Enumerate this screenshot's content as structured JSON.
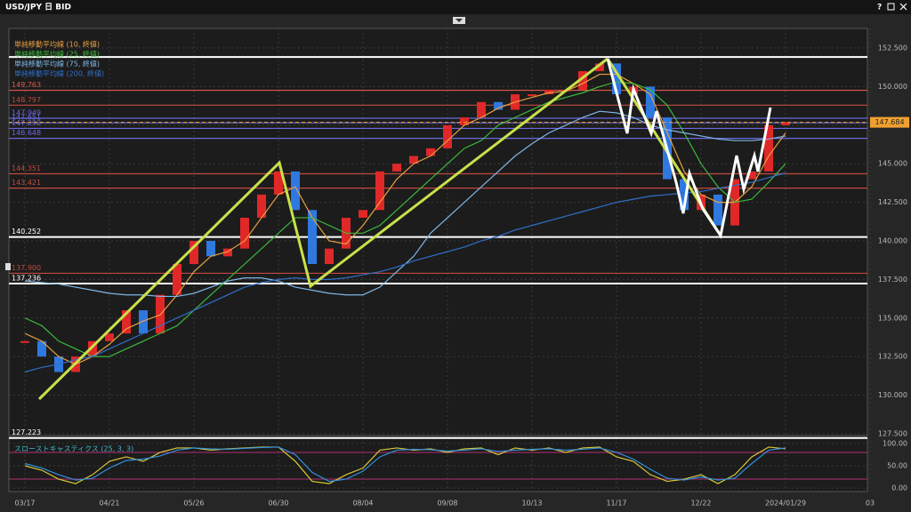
{
  "window": {
    "title": "USD/JPY 日 BID",
    "help": "?"
  },
  "chart_data": [
    {
      "type": "candlestick",
      "categories": [
        "03/17",
        null,
        null,
        null,
        null,
        "04/21",
        null,
        null,
        null,
        null,
        "05/26",
        null,
        null,
        null,
        null,
        "06/30",
        null,
        null,
        null,
        null,
        "08/04",
        null,
        null,
        null,
        null,
        "09/08",
        null,
        null,
        null,
        null,
        "10/13",
        null,
        null,
        null,
        null,
        "11/17",
        null,
        null,
        null,
        null,
        "12/22",
        null,
        null,
        null,
        null,
        "2024/01/29",
        null,
        null,
        null,
        null,
        "03"
      ],
      "values": [
        133.5,
        132.5,
        131.5,
        132.5,
        133.5,
        134,
        135.5,
        134,
        136.5,
        138.5,
        140,
        139,
        139.5,
        141.5,
        143,
        144.5,
        142,
        138.5,
        139.5,
        141.5,
        142,
        144.5,
        145,
        145.5,
        146,
        147.5,
        148,
        149,
        148.5,
        149.5,
        149.5,
        149.8,
        149.8,
        151,
        151.5,
        149.5,
        150,
        148,
        144,
        142,
        143,
        141,
        144,
        144.5,
        147.5,
        147.7,
        null,
        null,
        null,
        null,
        null
      ],
      "up_color": "#e02828",
      "down_color": "#2f78e0",
      "series": [
        {
          "name": "単純移動平均線 (10, 終値)",
          "color": "#e8a040",
          "values": [
            134,
            133.5,
            132.5,
            132,
            132.5,
            133.3,
            134.3,
            134.8,
            135.2,
            136.5,
            138,
            139,
            139.3,
            140,
            141.5,
            143,
            143.5,
            141.5,
            140,
            139.8,
            141,
            142.5,
            144,
            145,
            145.5,
            146.5,
            147.5,
            148,
            148.6,
            149,
            149.3,
            149.6,
            149.7,
            150.2,
            150.8,
            150.8,
            150.2,
            149.5,
            147,
            144.5,
            143,
            142.5,
            142.5,
            143.5,
            145.5,
            147,
            null,
            null,
            null,
            null,
            null
          ]
        },
        {
          "name": "単純移動平均線 (25, 終値)",
          "color": "#3cb83c",
          "values": [
            135,
            134.5,
            133.5,
            133,
            132.5,
            132.5,
            133,
            133.5,
            134,
            134.5,
            135.5,
            136.5,
            137.5,
            138.5,
            139.5,
            140.5,
            141.5,
            141.5,
            141,
            140.5,
            140.5,
            141,
            142,
            143,
            144,
            145,
            146,
            146.5,
            147.5,
            148,
            148.5,
            149,
            149.3,
            149.6,
            150,
            150.3,
            150.2,
            149.8,
            148.8,
            147,
            145,
            143.5,
            142.5,
            142.7,
            143.8,
            145,
            null,
            null,
            null,
            null,
            null
          ]
        },
        {
          "name": "単純移動平均線 (75, 終値)",
          "color": "#7fb6e8",
          "values": [
            137.4,
            137.3,
            137.2,
            137,
            136.8,
            136.6,
            136.5,
            136.5,
            136.4,
            136.4,
            136.6,
            137,
            137.4,
            137.6,
            137.6,
            137.4,
            137,
            136.8,
            136.6,
            136.5,
            136.5,
            137,
            138,
            139,
            140.5,
            141.5,
            142.5,
            143.5,
            144.5,
            145.5,
            146.3,
            147,
            147.5,
            148,
            148.4,
            148.3,
            148,
            147.5,
            147.2,
            147,
            146.8,
            146.6,
            146.5,
            146.5,
            146.6,
            146.8,
            null,
            null,
            null,
            null,
            null
          ]
        },
        {
          "name": "単純移動平均線 (200, 終値)",
          "color": "#2f6fc8",
          "values": [
            131.5,
            131.8,
            132,
            132.3,
            132.5,
            133,
            133.5,
            134,
            134.5,
            135,
            135.5,
            136,
            136.5,
            137,
            137.3,
            137.5,
            137.6,
            137.5,
            137.5,
            137.6,
            137.8,
            138,
            138.3,
            138.7,
            139,
            139.3,
            139.6,
            140,
            140.3,
            140.7,
            141,
            141.3,
            141.6,
            141.9,
            142.2,
            142.5,
            142.7,
            142.9,
            143,
            143.1,
            143.2,
            143.4,
            143.6,
            143.8,
            144.1,
            144.4,
            null,
            null,
            null,
            null,
            null
          ]
        }
      ],
      "levels": [
        {
          "value": 151.92,
          "color": "#ffffff"
        },
        {
          "value": 149.763,
          "color": "#e05a4a"
        },
        {
          "value": 148.797,
          "color": "#c04a3e"
        },
        {
          "value": 147.949,
          "color": "#6a6ae0"
        },
        {
          "value": 147.651,
          "color": "#6a6ae0"
        },
        {
          "value": 147.29,
          "label": "147.290",
          "color": "#6a6ae0"
        },
        {
          "value": 146.648,
          "color": "#6a6ae0"
        },
        {
          "value": 144.351,
          "color": "#c04a3e"
        },
        {
          "value": 143.421,
          "color": "#c04a3e"
        },
        {
          "value": 140.252,
          "color": "#ffffff"
        },
        {
          "value": 137.9,
          "label": "137.900",
          "color": "#c04a3e"
        },
        {
          "value": 137.236,
          "color": "#ffffff"
        },
        {
          "value": 127.223,
          "color": "#ffffff"
        }
      ],
      "last_price": {
        "value": 147.684,
        "label": "147.684",
        "color": "#f0a030"
      },
      "ylim": [
        127.38,
        153.77
      ],
      "yticks": [
        {
          "value": 127.5,
          "label": "127.500"
        },
        {
          "value": 130,
          "label": "130.000"
        },
        {
          "value": 132.5,
          "label": "132.500"
        },
        {
          "value": 135,
          "label": "135.000"
        },
        {
          "value": 137.5,
          "label": "137.500"
        },
        {
          "value": 140,
          "label": "140.000"
        },
        {
          "value": 142.5,
          "label": "142.500"
        },
        {
          "value": 145,
          "label": "145.000"
        },
        {
          "value": 147.5,
          "label": "147.500"
        },
        {
          "value": 150,
          "label": "150.000"
        },
        {
          "value": 152.5,
          "label": "152.500"
        }
      ],
      "grid": true
    },
    {
      "type": "line",
      "title": "スローストキャスティクス (25, 3, 3)",
      "series": [
        {
          "color": "#d8c838",
          "values": [
            50,
            40,
            20,
            10,
            30,
            60,
            70,
            60,
            80,
            90,
            90,
            85,
            88,
            90,
            92,
            92,
            60,
            15,
            10,
            30,
            45,
            85,
            90,
            85,
            88,
            80,
            88,
            90,
            75,
            90,
            85,
            90,
            80,
            90,
            92,
            70,
            60,
            30,
            15,
            20,
            30,
            10,
            30,
            70,
            92,
            88,
            null,
            null,
            null,
            null,
            null
          ]
        },
        {
          "color": "#3090e0",
          "values": [
            55,
            45,
            30,
            18,
            22,
            45,
            62,
            65,
            72,
            85,
            90,
            88,
            87,
            89,
            91,
            92,
            75,
            35,
            15,
            20,
            38,
            70,
            85,
            87,
            86,
            83,
            85,
            88,
            82,
            85,
            87,
            88,
            85,
            87,
            90,
            80,
            65,
            42,
            22,
            18,
            25,
            18,
            22,
            55,
            85,
            90,
            null,
            null,
            null,
            null,
            null
          ]
        }
      ],
      "guides": [
        80,
        20
      ],
      "ylim": [
        -7.8,
        111.8
      ],
      "yticks": [
        {
          "value": 0,
          "label": "0.00"
        },
        {
          "value": 50,
          "label": "50.00"
        },
        {
          "value": 100,
          "label": "100.00"
        }
      ],
      "grid": true
    }
  ]
}
